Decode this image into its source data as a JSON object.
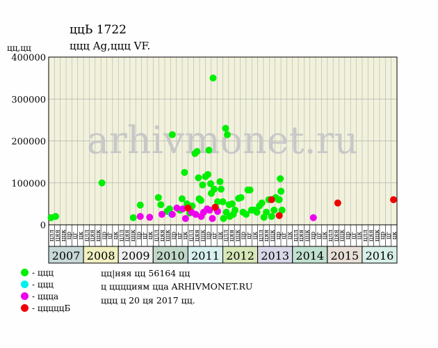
{
  "header": {
    "title_line1": "ццЬ 1722",
    "title_line2": "ццц Ag,ццц VF.",
    "ylabel": "цц,цц"
  },
  "watermark": "arhivmonet.ru",
  "colors": {
    "plot_bg": "#f2f2dc",
    "grid": "#b0b0b0",
    "green": "#00ee00",
    "cyan": "#00f0f0",
    "magenta": "#ee00ee",
    "red": "#ee0000"
  },
  "legend": [
    {
      "label": "- ццц",
      "color": "#00ee00"
    },
    {
      "label": "- ццц",
      "color": "#00f0f0"
    },
    {
      "label": "- ццца",
      "color": "#ee00ee"
    },
    {
      "label": "- цццццБ",
      "color": "#ee0000"
    }
  ],
  "notes": {
    "line1": "цц|няя цц 56164 цц",
    "line2": "ц цццциям цца ARHIVMONET.RU",
    "line3": "ццц ц 20 ця 2017 цц."
  },
  "chart_data": {
    "type": "scatter",
    "ylim": [
      0,
      400000
    ],
    "yticks": [
      0,
      100000,
      200000,
      300000,
      400000
    ],
    "ytick_labels": [
      "0",
      "100000",
      "200000",
      "300000",
      "400000"
    ],
    "years": [
      "2007",
      "2008",
      "2009",
      "2010",
      "2011",
      "2012",
      "2013",
      "2014",
      "2015",
      "2016"
    ],
    "year_colors": [
      "#c8d8d8",
      "#f0f0c0",
      "#f0f0f0",
      "#c0d8c8",
      "#d8f0f0",
      "#d8e8b8",
      "#d8d8e8",
      "#c0e0d0",
      "#e8e0d8",
      "#d8f0e8"
    ],
    "quarter_labels": [
      "цлл",
      "цяя",
      "ццк",
      "цр",
      "цг",
      "цк"
    ],
    "x_range": [
      2007.0,
      2017.0
    ],
    "series": [
      {
        "color": "#00ee00",
        "points": [
          [
            2007.07,
            17000
          ],
          [
            2007.2,
            20000
          ],
          [
            2008.53,
            100000
          ],
          [
            2009.43,
            17000
          ],
          [
            2009.63,
            47000
          ],
          [
            2010.15,
            65000
          ],
          [
            2010.22,
            48000
          ],
          [
            2010.4,
            32000
          ],
          [
            2010.47,
            38000
          ],
          [
            2010.55,
            215000
          ],
          [
            2010.77,
            35000
          ],
          [
            2010.83,
            62000
          ],
          [
            2010.9,
            125000
          ],
          [
            2010.97,
            50000
          ],
          [
            2011.05,
            28000
          ],
          [
            2011.12,
            45000
          ],
          [
            2011.2,
            170000
          ],
          [
            2011.26,
            175000
          ],
          [
            2011.3,
            112000
          ],
          [
            2011.32,
            62000
          ],
          [
            2011.37,
            58000
          ],
          [
            2011.42,
            95000
          ],
          [
            2011.5,
            115000
          ],
          [
            2011.57,
            120000
          ],
          [
            2011.6,
            178000
          ],
          [
            2011.65,
            98000
          ],
          [
            2011.67,
            75000
          ],
          [
            2011.72,
            350000
          ],
          [
            2011.75,
            85000
          ],
          [
            2011.85,
            55000
          ],
          [
            2011.92,
            103000
          ],
          [
            2011.95,
            85000
          ],
          [
            2012.0,
            55000
          ],
          [
            2012.02,
            15000
          ],
          [
            2012.08,
            230000
          ],
          [
            2012.13,
            215000
          ],
          [
            2012.18,
            48000
          ],
          [
            2012.2,
            20000
          ],
          [
            2012.27,
            50000
          ],
          [
            2012.35,
            35000
          ],
          [
            2012.45,
            63000
          ],
          [
            2012.52,
            65000
          ],
          [
            2012.58,
            30000
          ],
          [
            2012.67,
            25000
          ],
          [
            2012.72,
            83000
          ],
          [
            2012.78,
            83000
          ],
          [
            2012.82,
            35000
          ],
          [
            2012.9,
            35000
          ],
          [
            2012.98,
            30000
          ],
          [
            2013.05,
            45000
          ],
          [
            2013.12,
            52000
          ],
          [
            2013.18,
            18000
          ],
          [
            2013.25,
            30000
          ],
          [
            2013.32,
            60000
          ],
          [
            2013.4,
            20000
          ],
          [
            2013.47,
            35000
          ],
          [
            2013.52,
            65000
          ],
          [
            2013.6,
            60000
          ],
          [
            2013.65,
            110000
          ],
          [
            2013.67,
            80000
          ],
          [
            2013.7,
            35000
          ],
          [
            2013.62,
            60000
          ],
          [
            2011.8,
            40000
          ],
          [
            2012.1,
            30000
          ],
          [
            2012.3,
            25000
          ]
        ]
      },
      {
        "color": "#00f0f0",
        "points": [
          [
            2010.53,
            25000
          ]
        ]
      },
      {
        "color": "#ee00ee",
        "points": [
          [
            2009.63,
            20000
          ],
          [
            2009.9,
            18000
          ],
          [
            2010.25,
            25000
          ],
          [
            2010.55,
            25000
          ],
          [
            2010.68,
            40000
          ],
          [
            2010.85,
            38000
          ],
          [
            2010.93,
            15000
          ],
          [
            2011.1,
            30000
          ],
          [
            2011.22,
            25000
          ],
          [
            2011.38,
            20000
          ],
          [
            2011.45,
            30000
          ],
          [
            2011.55,
            38000
          ],
          [
            2011.62,
            35000
          ],
          [
            2011.7,
            15000
          ],
          [
            2011.85,
            32000
          ],
          [
            2014.6,
            17000
          ]
        ]
      },
      {
        "color": "#ee0000",
        "points": [
          [
            2011.0,
            40000
          ],
          [
            2011.78,
            42000
          ],
          [
            2013.4,
            60000
          ],
          [
            2013.62,
            22000
          ],
          [
            2015.3,
            52000
          ],
          [
            2016.9,
            60000
          ]
        ]
      }
    ]
  }
}
